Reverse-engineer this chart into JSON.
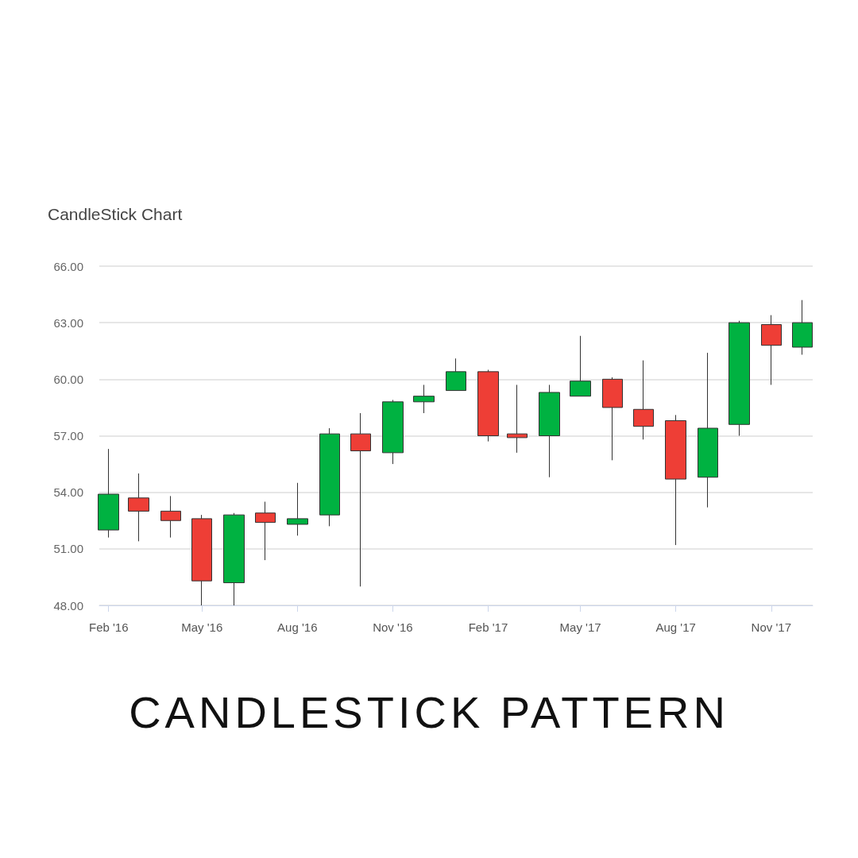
{
  "chart_data": {
    "type": "candlestick",
    "title": "CandleStick Chart",
    "annotations": [
      "CANDLESTICK PATTERN"
    ],
    "x": [
      "2016-02",
      "2016-03",
      "2016-04",
      "2016-05",
      "2016-06",
      "2016-07",
      "2016-08",
      "2016-09",
      "2016-10",
      "2016-11",
      "2016-12",
      "2017-01",
      "2017-02",
      "2017-03",
      "2017-04",
      "2017-05",
      "2017-06",
      "2017-07",
      "2017-08",
      "2017-09",
      "2017-10",
      "2017-11",
      "2017-12"
    ],
    "ohlc": [
      [
        52.0,
        56.3,
        51.6,
        53.9
      ],
      [
        53.7,
        55.0,
        51.4,
        53.0
      ],
      [
        53.0,
        53.8,
        51.6,
        52.5
      ],
      [
        52.6,
        52.8,
        48.0,
        49.3
      ],
      [
        49.2,
        52.9,
        48.0,
        52.8
      ],
      [
        52.9,
        53.5,
        50.4,
        52.4
      ],
      [
        52.3,
        54.5,
        51.7,
        52.6
      ],
      [
        52.8,
        57.4,
        52.2,
        57.1
      ],
      [
        57.1,
        58.2,
        49.0,
        56.2
      ],
      [
        56.1,
        58.9,
        55.5,
        58.8
      ],
      [
        58.8,
        59.7,
        58.2,
        59.1
      ],
      [
        59.4,
        61.1,
        59.4,
        60.4
      ],
      [
        60.4,
        60.5,
        56.7,
        57.0
      ],
      [
        57.1,
        59.7,
        56.1,
        56.9
      ],
      [
        57.0,
        59.7,
        54.8,
        59.3
      ],
      [
        59.1,
        62.3,
        59.1,
        59.9
      ],
      [
        60.0,
        60.1,
        55.7,
        58.5
      ],
      [
        58.4,
        61.0,
        56.8,
        57.5
      ],
      [
        57.8,
        58.1,
        51.2,
        54.7
      ],
      [
        54.8,
        61.4,
        53.2,
        57.4
      ],
      [
        57.6,
        63.1,
        57.0,
        63.0
      ],
      [
        62.9,
        63.4,
        59.7,
        61.8
      ],
      [
        61.7,
        64.2,
        61.3,
        63.0
      ]
    ],
    "colors": [
      "#00b241",
      "#ee3e36",
      "#ee3e36",
      "#ee3e36",
      "#00b241",
      "#ee3e36",
      "#00b241",
      "#00b241",
      "#ee3e36",
      "#00b241",
      "#00b241",
      "#00b241",
      "#ee3e36",
      "#ee3e36",
      "#00b241",
      "#00b241",
      "#ee3e36",
      "#ee3e36",
      "#ee3e36",
      "#00b241",
      "#00b241",
      "#ee3e36",
      "#00b241"
    ],
    "xlim": [
      "2016-01-23",
      "2017-12-11"
    ],
    "xticks": [
      {
        "value": "2016-02",
        "label": "Feb '16"
      },
      {
        "value": "2016-05",
        "label": "May '16"
      },
      {
        "value": "2016-08",
        "label": "Aug '16"
      },
      {
        "value": "2016-11",
        "label": "Nov '16"
      },
      {
        "value": "2017-02",
        "label": "Feb '17"
      },
      {
        "value": "2017-05",
        "label": "May '17"
      },
      {
        "value": "2017-08",
        "label": "Aug '17"
      },
      {
        "value": "2017-11",
        "label": "Nov '17"
      }
    ],
    "ylim": [
      48,
      66
    ],
    "yticks": [
      {
        "value": 48,
        "label": "48.00"
      },
      {
        "value": 51,
        "label": "51.00"
      },
      {
        "value": 54,
        "label": "54.00"
      },
      {
        "value": 57,
        "label": "57.00"
      },
      {
        "value": 60,
        "label": "60.00"
      },
      {
        "value": 63,
        "label": "63.00"
      },
      {
        "value": 66,
        "label": "66.00"
      }
    ],
    "grid": "y"
  }
}
